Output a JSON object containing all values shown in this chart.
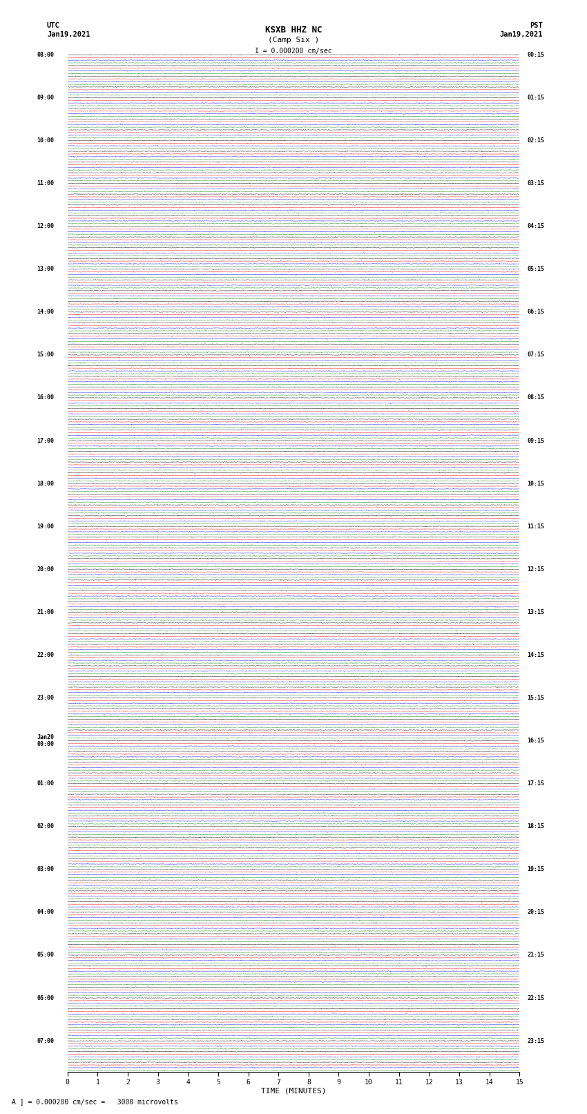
{
  "title": "KSXB HHZ NC",
  "subtitle": "(Camp Six )",
  "scale_text": "I = 0.000200 cm/sec",
  "bottom_scale_text": "A ] = 0.000200 cm/sec =   3000 microvolts",
  "utc_label": "UTC",
  "utc_date": "Jan19,2021",
  "pst_label": "PST",
  "pst_date": "Jan19,2021",
  "xlabel": "TIME (MINUTES)",
  "trace_colors": [
    "black",
    "red",
    "blue",
    "green"
  ],
  "bg_color": "white",
  "left_times_utc": [
    "08:00",
    "",
    "",
    "",
    "09:00",
    "",
    "",
    "",
    "10:00",
    "",
    "",
    "",
    "11:00",
    "",
    "",
    "",
    "12:00",
    "",
    "",
    "",
    "13:00",
    "",
    "",
    "",
    "14:00",
    "",
    "",
    "",
    "15:00",
    "",
    "",
    "",
    "16:00",
    "",
    "",
    "",
    "17:00",
    "",
    "",
    "",
    "18:00",
    "",
    "",
    "",
    "19:00",
    "",
    "",
    "",
    "20:00",
    "",
    "",
    "",
    "21:00",
    "",
    "",
    "",
    "22:00",
    "",
    "",
    "",
    "23:00",
    "",
    "",
    "",
    "Jan20\n00:00",
    "",
    "",
    "",
    "01:00",
    "",
    "",
    "",
    "02:00",
    "",
    "",
    "",
    "03:00",
    "",
    "",
    "",
    "04:00",
    "",
    "",
    "",
    "05:00",
    "",
    "",
    "",
    "06:00",
    "",
    "",
    "",
    "07:00",
    "",
    ""
  ],
  "right_times_pst": [
    "00:15",
    "",
    "",
    "",
    "01:15",
    "",
    "",
    "",
    "02:15",
    "",
    "",
    "",
    "03:15",
    "",
    "",
    "",
    "04:15",
    "",
    "",
    "",
    "05:15",
    "",
    "",
    "",
    "06:15",
    "",
    "",
    "",
    "07:15",
    "",
    "",
    "",
    "08:15",
    "",
    "",
    "",
    "09:15",
    "",
    "",
    "",
    "10:15",
    "",
    "",
    "",
    "11:15",
    "",
    "",
    "",
    "12:15",
    "",
    "",
    "",
    "13:15",
    "",
    "",
    "",
    "14:15",
    "",
    "",
    "",
    "15:15",
    "",
    "",
    "",
    "16:15",
    "",
    "",
    "",
    "17:15",
    "",
    "",
    "",
    "18:15",
    "",
    "",
    "",
    "19:15",
    "",
    "",
    "",
    "20:15",
    "",
    "",
    "",
    "21:15",
    "",
    "",
    "",
    "22:15",
    "",
    "",
    "",
    "23:15",
    "",
    ""
  ],
  "num_rows": 95,
  "minutes": 15,
  "n_samples": 1500,
  "amplitude_scale": 0.38,
  "fig_width": 8.5,
  "fig_height": 16.13,
  "dpi": 100
}
